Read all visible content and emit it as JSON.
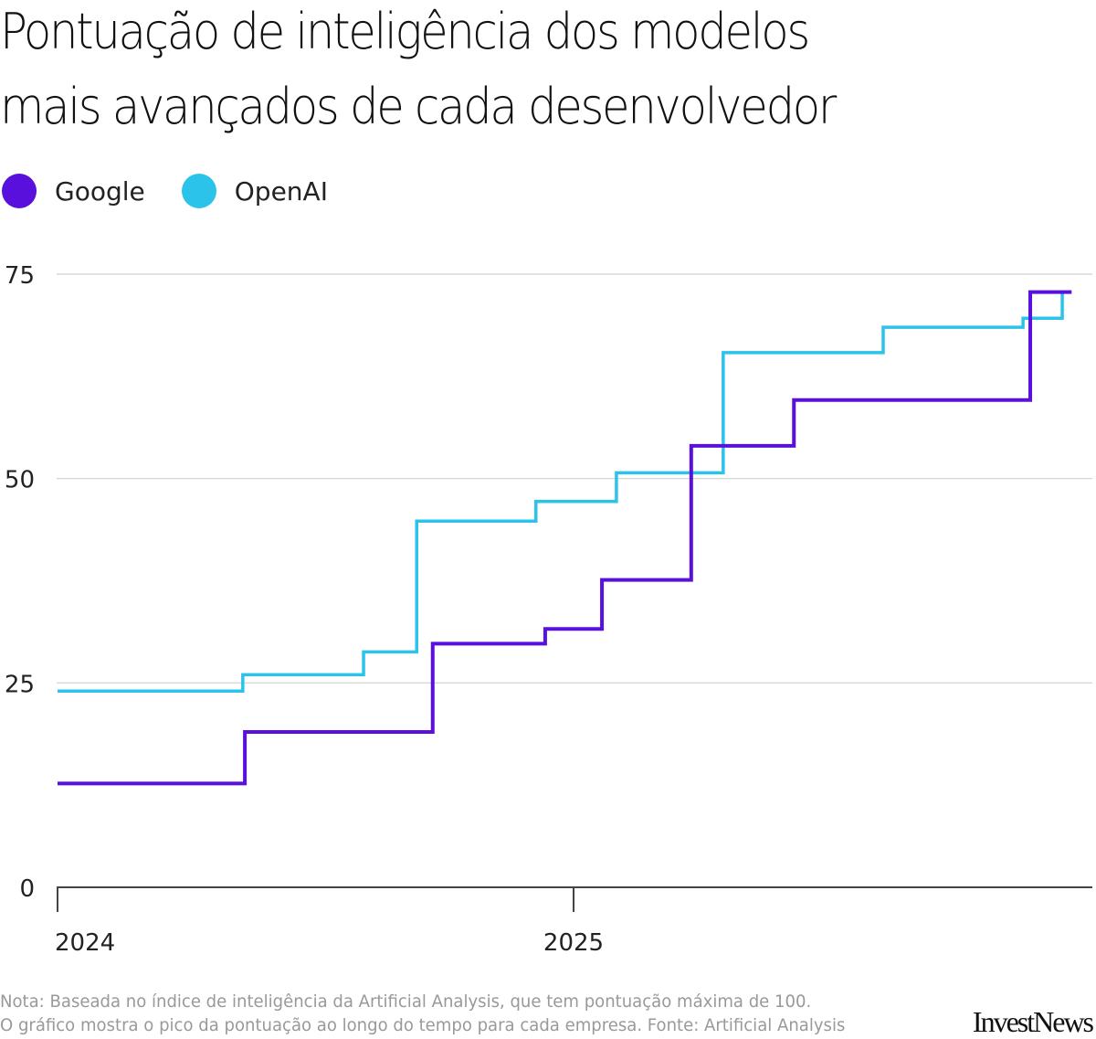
{
  "title_line1": "Pontuação de inteligência dos modelos",
  "title_line2": "mais avançados de cada desenvolvedor",
  "note_line1": "Nota: Baseada no índice de inteligência da Artificial Analysis, que tem pontuação máxima de 100.",
  "note_line2": "O gráfico mostra o pico da pontuação ao longo do tempo para cada empresa. Fonte: Artificial Analysis",
  "logo": "InvestNews",
  "chart_data": {
    "type": "line",
    "step": true,
    "title": "Pontuação de inteligência dos modelos mais avançados de cada desenvolvedor",
    "xlabel": "",
    "ylabel": "",
    "xlim": [
      2024.0,
      2026.0
    ],
    "ylim": [
      0,
      75
    ],
    "yticks": [
      0,
      25,
      50,
      75
    ],
    "ytick_labels": [
      "0",
      "25",
      "50",
      "75"
    ],
    "xticks": [
      2024,
      2025
    ],
    "xtick_labels": [
      "2024",
      "2025"
    ],
    "grid": true,
    "legend": "top-left",
    "series": [
      {
        "name": "Google",
        "color": "#5a10dc",
        "x": [
          2024.0,
          2024.363,
          2024.727,
          2024.945,
          2025.055,
          2025.228,
          2025.427,
          2025.885,
          2025.965
        ],
        "y": [
          12.7,
          19.0,
          29.8,
          31.6,
          37.6,
          54.0,
          59.6,
          72.8,
          72.8
        ]
      },
      {
        "name": "OpenAI",
        "color": "#2cc3ea",
        "x": [
          2024.0,
          2024.359,
          2024.593,
          2024.696,
          2024.927,
          2025.083,
          2025.29,
          2025.6,
          2025.871,
          2025.947,
          2025.965
        ],
        "y": [
          24.0,
          26.0,
          28.8,
          44.8,
          47.2,
          50.7,
          65.4,
          68.5,
          69.6,
          72.8,
          72.8
        ]
      }
    ]
  }
}
